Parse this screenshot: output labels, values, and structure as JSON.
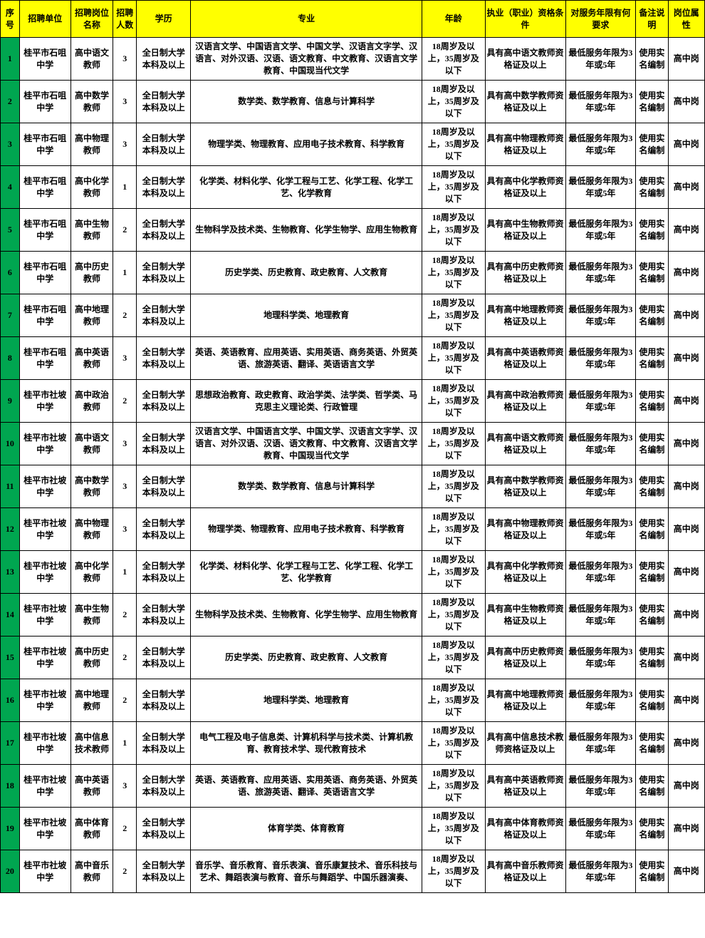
{
  "columns": [
    {
      "key": "seq",
      "label": "序号",
      "class": "col-seq"
    },
    {
      "key": "unit",
      "label": "招聘单位",
      "class": "col-unit"
    },
    {
      "key": "post",
      "label": "招聘岗位名称",
      "class": "col-post"
    },
    {
      "key": "count",
      "label": "招聘人数",
      "class": "col-count"
    },
    {
      "key": "edu",
      "label": "学历",
      "class": "col-edu"
    },
    {
      "key": "major",
      "label": "专业",
      "class": "col-major"
    },
    {
      "key": "age",
      "label": "年龄",
      "class": "col-age"
    },
    {
      "key": "qual",
      "label": "执业（职业）资格条件",
      "class": "col-qual"
    },
    {
      "key": "serv",
      "label": "对服务年限有何要求",
      "class": "col-serv"
    },
    {
      "key": "note",
      "label": "备注说明",
      "class": "col-note"
    },
    {
      "key": "attr",
      "label": "岗位属性",
      "class": "col-attr"
    }
  ],
  "common": {
    "edu": "全日制大学本科及以上",
    "age": "18周岁及以上，35周岁及以下",
    "serv": "最低服务年限为3年或5年",
    "note": "使用实名编制",
    "attr": "高中岗"
  },
  "rows": [
    {
      "seq": "1",
      "unit": "桂平市石咀中学",
      "post": "高中语文教师",
      "count": "3",
      "major": "汉语言文学、中国语言文学、中国文学、汉语言文字学、汉语言、对外汉语、汉语、语文教育、中文教育、汉语言文学教育、中国现当代文学",
      "qual": "具有高中语文教师资格证及以上"
    },
    {
      "seq": "2",
      "unit": "桂平市石咀中学",
      "post": "高中数学教师",
      "count": "3",
      "major": "数学类、数学教育、信息与计算科学",
      "qual": "具有高中数学教师资格证及以上"
    },
    {
      "seq": "3",
      "unit": "桂平市石咀中学",
      "post": "高中物理教师",
      "count": "3",
      "major": "物理学类、物理教育、应用电子技术教育、科学教育",
      "qual": "具有高中物理教师资格证及以上"
    },
    {
      "seq": "4",
      "unit": "桂平市石咀中学",
      "post": "高中化学教师",
      "count": "1",
      "major": "化学类、材料化学、化学工程与工艺、化学工程、化学工艺、化学教育",
      "qual": "具有高中化学教师资格证及以上"
    },
    {
      "seq": "5",
      "unit": "桂平市石咀中学",
      "post": "高中生物教师",
      "count": "2",
      "major": "生物科学及技术类、生物教育、化学生物学、应用生物教育",
      "qual": "具有高中生物教师资格证及以上"
    },
    {
      "seq": "6",
      "unit": "桂平市石咀中学",
      "post": "高中历史教师",
      "count": "1",
      "major": "历史学类、历史教育、政史教育、人文教育",
      "qual": "具有高中历史教师资格证及以上"
    },
    {
      "seq": "7",
      "unit": "桂平市石咀中学",
      "post": "高中地理教师",
      "count": "2",
      "major": "地理科学类、地理教育",
      "qual": "具有高中地理教师资格证及以上"
    },
    {
      "seq": "8",
      "unit": "桂平市石咀中学",
      "post": "高中英语教师",
      "count": "3",
      "major": "英语、英语教育、应用英语、实用英语、商务英语、外贸英语、旅游英语、翻译、英语语言文学",
      "qual": "具有高中英语教师资格证及以上"
    },
    {
      "seq": "9",
      "unit": "桂平市社坡中学",
      "post": "高中政治教师",
      "count": "2",
      "major": "思想政治教育、政史教育、政治学类、法学类、哲学类、马克思主义理论类、行政管理",
      "qual": "具有高中政治教师资格证及以上"
    },
    {
      "seq": "10",
      "unit": "桂平市社坡中学",
      "post": "高中语文教师",
      "count": "3",
      "major": "汉语言文学、中国语言文学、中国文学、汉语言文字学、汉语言、对外汉语、汉语、语文教育、中文教育、汉语言文学教育、中国现当代文学",
      "qual": "具有高中语文教师资格证及以上"
    },
    {
      "seq": "11",
      "unit": "桂平市社坡中学",
      "post": "高中数学教师",
      "count": "3",
      "major": "数学类、数学教育、信息与计算科学",
      "qual": "具有高中数学教师资格证及以上"
    },
    {
      "seq": "12",
      "unit": "桂平市社坡中学",
      "post": "高中物理教师",
      "count": "3",
      "major": "物理学类、物理教育、应用电子技术教育、科学教育",
      "qual": "具有高中物理教师资格证及以上"
    },
    {
      "seq": "13",
      "unit": "桂平市社坡中学",
      "post": "高中化学教师",
      "count": "1",
      "major": "化学类、材料化学、化学工程与工艺、化学工程、化学工艺、化学教育",
      "qual": "具有高中化学教师资格证及以上"
    },
    {
      "seq": "14",
      "unit": "桂平市社坡中学",
      "post": "高中生物教师",
      "count": "2",
      "major": "生物科学及技术类、生物教育、化学生物学、应用生物教育",
      "qual": "具有高中生物教师资格证及以上"
    },
    {
      "seq": "15",
      "unit": "桂平市社坡中学",
      "post": "高中历史教师",
      "count": "2",
      "major": "历史学类、历史教育、政史教育、人文教育",
      "qual": "具有高中历史教师资格证及以上"
    },
    {
      "seq": "16",
      "unit": "桂平市社坡中学",
      "post": "高中地理教师",
      "count": "2",
      "major": "地理科学类、地理教育",
      "qual": "具有高中地理教师资格证及以上"
    },
    {
      "seq": "17",
      "unit": "桂平市社坡中学",
      "post": "高中信息技术教师",
      "count": "1",
      "major": "电气工程及电子信息类、计算机科学与技术类、计算机教育、教育技术学、现代教育技术",
      "qual": "具有高中信息技术教师资格证及以上"
    },
    {
      "seq": "18",
      "unit": "桂平市社坡中学",
      "post": "高中英语教师",
      "count": "3",
      "major": "英语、英语教育、应用英语、实用英语、商务英语、外贸英语、旅游英语、翻译、英语语言文学",
      "qual": "具有高中英语教师资格证及以上"
    },
    {
      "seq": "19",
      "unit": "桂平市社坡中学",
      "post": "高中体育教师",
      "count": "2",
      "major": "体育学类、体育教育",
      "qual": "具有高中体育教师资格证及以上"
    },
    {
      "seq": "20",
      "unit": "桂平市社坡中学",
      "post": "高中音乐教师",
      "count": "2",
      "major": "音乐学、音乐教育、音乐表演、音乐康复技术、音乐科技与艺术、舞蹈表演与教育、音乐与舞蹈学、中国乐器演奏、",
      "qual": "具有高中音乐教师资格证及以上"
    }
  ],
  "styles": {
    "header_bg": "#ffff00",
    "seq_bg": "#00a650",
    "border_color": "#000000",
    "font_size": 12,
    "font_weight": "bold"
  }
}
